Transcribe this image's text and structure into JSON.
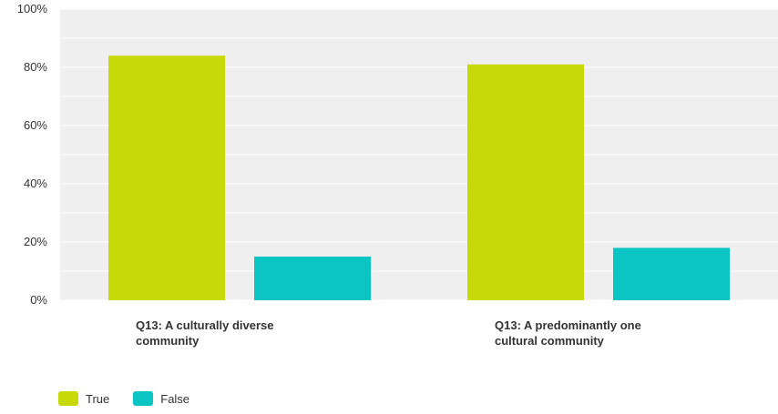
{
  "chart_data": {
    "type": "bar",
    "categories": [
      [
        "Q13: A culturally diverse",
        "community"
      ],
      [
        "Q13: A predominantly one",
        "cultural community"
      ]
    ],
    "series": [
      {
        "name": "True",
        "values": [
          84,
          81
        ],
        "color": "#c8d90a"
      },
      {
        "name": "False",
        "values": [
          15,
          18
        ],
        "color": "#0bc4c4"
      }
    ],
    "ylim": [
      0,
      100
    ],
    "yticks": [
      "0%",
      "20%",
      "40%",
      "60%",
      "80%",
      "100%"
    ],
    "grid": true,
    "legend_position": "bottom-left",
    "background": "#efefef"
  }
}
